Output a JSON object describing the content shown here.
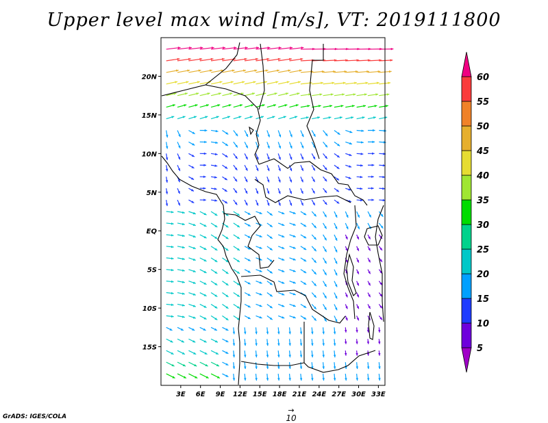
{
  "title": "Upper level max wind [m/s], VT: 2019111800",
  "credit": "GrADS: IGES/COLA",
  "reference_vector": {
    "label": "10",
    "value": 10
  },
  "map": {
    "lon_range": [
      0,
      34
    ],
    "lat_range": [
      -20,
      25
    ],
    "lat_ticks": [
      {
        "lat": 20,
        "label": "20N"
      },
      {
        "lat": 15,
        "label": "15N"
      },
      {
        "lat": 10,
        "label": "10N"
      },
      {
        "lat": 5,
        "label": "5N"
      },
      {
        "lat": 0,
        "label": "EQ"
      },
      {
        "lat": -5,
        "label": "5S"
      },
      {
        "lat": -10,
        "label": "10S"
      },
      {
        "lat": -15,
        "label": "15S"
      }
    ],
    "lon_ticks": [
      {
        "lon": 3,
        "label": "3E"
      },
      {
        "lon": 6,
        "label": "6E"
      },
      {
        "lon": 9,
        "label": "9E"
      },
      {
        "lon": 12,
        "label": "12E"
      },
      {
        "lon": 15,
        "label": "15E"
      },
      {
        "lon": 18,
        "label": "18E"
      },
      {
        "lon": 21,
        "label": "21E"
      },
      {
        "lon": 24,
        "label": "24E"
      },
      {
        "lon": 27,
        "label": "27E"
      },
      {
        "lon": 30,
        "label": "30E"
      },
      {
        "lon": 33,
        "label": "33E"
      }
    ]
  },
  "colorbar": {
    "levels": [
      "5",
      "10",
      "15",
      "20",
      "25",
      "30",
      "35",
      "40",
      "45",
      "50",
      "55",
      "60"
    ],
    "colors": [
      "#a000c8",
      "#6e00dc",
      "#1e3cff",
      "#00a0ff",
      "#00c8c8",
      "#00d28c",
      "#00dc00",
      "#a0e632",
      "#e6dc32",
      "#e6af2d",
      "#f08228",
      "#fa3c3c",
      "#f00082"
    ]
  }
}
